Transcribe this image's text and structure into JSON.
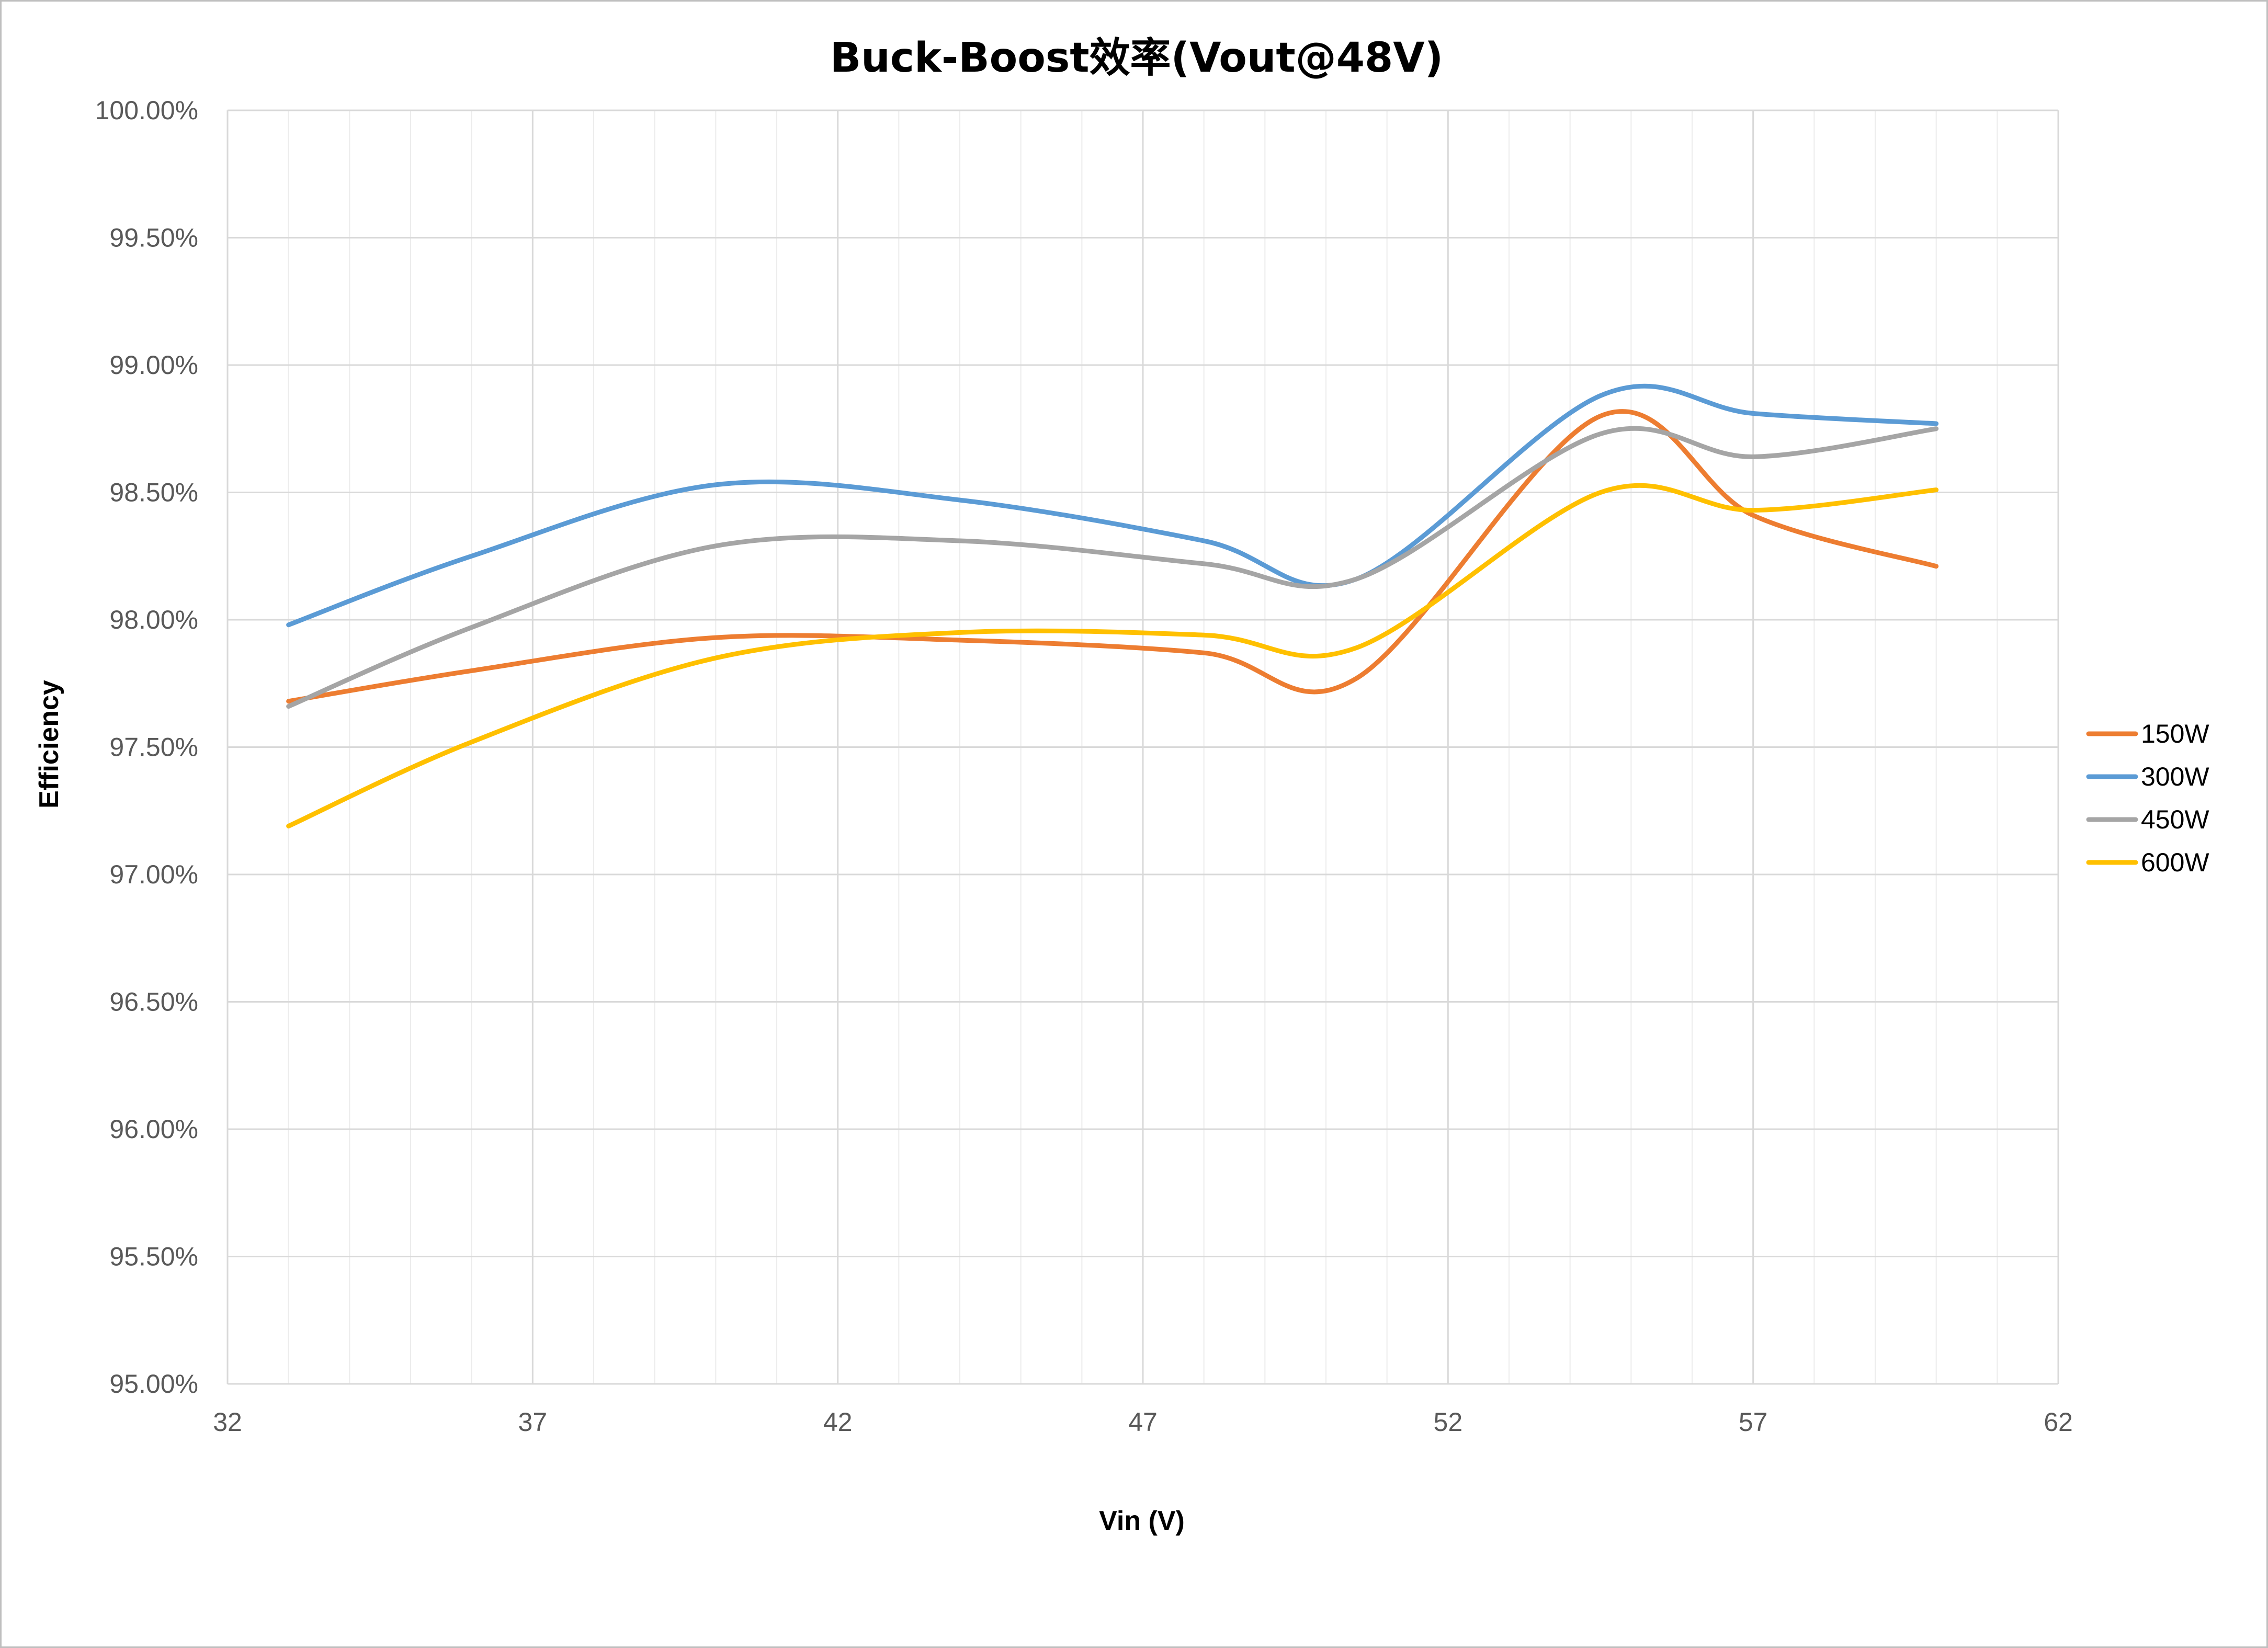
{
  "chart_data": {
    "type": "line",
    "title": "Buck-Boost效率(Vout@48V)",
    "xlabel": "Vin (V)",
    "ylabel": "Efficiency",
    "xlim": [
      32,
      62
    ],
    "ylim": [
      95.0,
      100.0
    ],
    "x_ticks": [
      32,
      37,
      42,
      47,
      52,
      57,
      62
    ],
    "x_tick_labels": [
      "32",
      "37",
      "42",
      "47",
      "52",
      "57",
      "62"
    ],
    "y_ticks": [
      95.0,
      95.5,
      96.0,
      96.5,
      97.0,
      97.5,
      98.0,
      98.5,
      99.0,
      99.5,
      100.0
    ],
    "y_tick_labels": [
      "95.00%",
      "95.50%",
      "96.00%",
      "96.50%",
      "97.00%",
      "97.50%",
      "98.00%",
      "98.50%",
      "99.00%",
      "99.50%",
      "100.00%"
    ],
    "grid": true,
    "smooth": true,
    "legend_position": "right",
    "x": [
      33,
      36,
      40,
      44,
      48,
      50.5,
      54.5,
      57,
      60
    ],
    "series": [
      {
        "name": "150W",
        "color": "#ED7D31",
        "values": [
          97.68,
          97.8,
          97.93,
          97.92,
          97.87,
          97.77,
          98.8,
          98.41,
          98.21
        ]
      },
      {
        "name": "300W",
        "color": "#5B9BD5",
        "values": [
          97.98,
          98.25,
          98.53,
          98.47,
          98.31,
          98.16,
          98.88,
          98.81,
          98.77
        ]
      },
      {
        "name": "450W",
        "color": "#A5A5A5",
        "values": [
          97.66,
          97.97,
          98.29,
          98.31,
          98.22,
          98.16,
          98.73,
          98.64,
          98.75
        ]
      },
      {
        "name": "600W",
        "color": "#FFC000",
        "values": [
          97.19,
          97.52,
          97.85,
          97.95,
          97.94,
          97.89,
          98.5,
          98.43,
          98.51
        ]
      }
    ]
  }
}
